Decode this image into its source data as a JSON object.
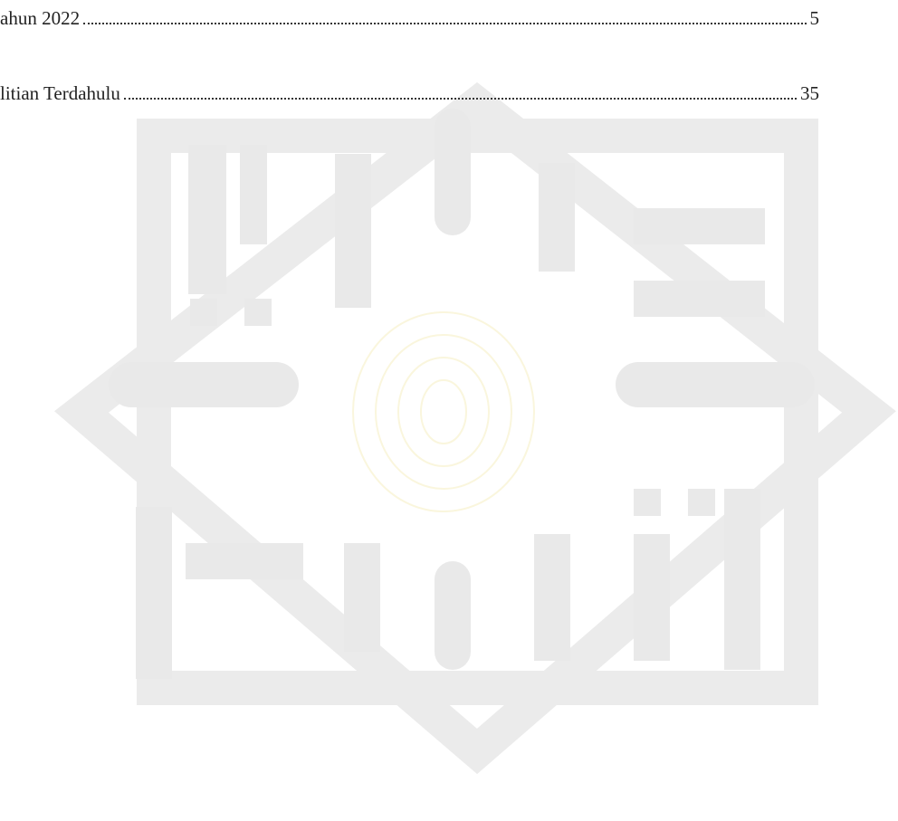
{
  "toc": {
    "entries": [
      {
        "title": "ahun 2022",
        "page": 5
      },
      {
        "title": "litian Terdahulu",
        "page": 35
      }
    ]
  }
}
